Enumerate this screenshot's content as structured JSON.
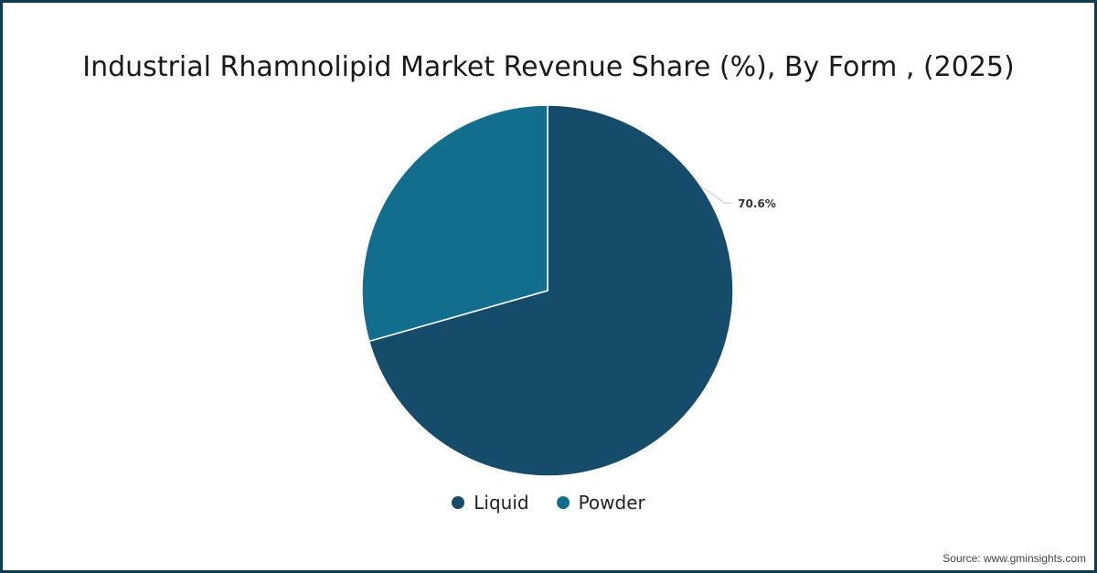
{
  "chart_data": {
    "type": "pie",
    "title": "Industrial Rhamnolipid Market Revenue Share (%), By Form , (2025)",
    "categories": [
      "Liquid",
      "Powder"
    ],
    "values": [
      70.6,
      29.4
    ],
    "colors": [
      "#164b6a",
      "#126e8c"
    ],
    "data_labels": [
      "70.6%",
      ""
    ],
    "legend": {
      "placement": "bottom",
      "entries": [
        "Liquid",
        "Powder"
      ]
    }
  },
  "source": "Source: www.gminsights.com"
}
